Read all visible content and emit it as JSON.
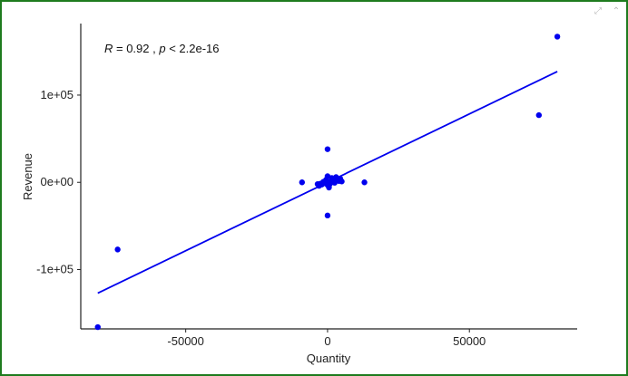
{
  "toolbar": {
    "icons": [
      "expand-icon",
      "collapse-icon"
    ],
    "expand_glyph": "⤢",
    "collapse_glyph": "⌃"
  },
  "chart_data": {
    "type": "scatter",
    "title": "",
    "xlabel": "Quantity",
    "ylabel": "Revenue",
    "xlim": [
      -87000,
      88000
    ],
    "ylim": [
      -168000,
      182000
    ],
    "x_ticks": [
      -50000,
      0,
      50000
    ],
    "x_tick_labels": [
      "-50000",
      "0",
      "50000"
    ],
    "y_ticks": [
      -100000,
      0,
      100000
    ],
    "y_tick_labels": [
      "-1e+05",
      "0e+00",
      "1e+05"
    ],
    "grid": false,
    "legend": "none",
    "annotation": {
      "r_symbol": "R",
      "r_value": " = 0.92 , ",
      "p_symbol": "p",
      "p_value": " < 2.2e-16"
    },
    "colors": {
      "points": "#0000ee",
      "line": "#0000ee",
      "axis": "#222222",
      "frame": "#1e7b1e"
    },
    "regression": {
      "x": [
        -81000,
        81000
      ],
      "y": [
        -127000,
        127000
      ]
    },
    "points": [
      {
        "x": 81000,
        "y": 167000
      },
      {
        "x": 74500,
        "y": 77000
      },
      {
        "x": -74000,
        "y": -77000
      },
      {
        "x": -81000,
        "y": -166000
      },
      {
        "x": 0,
        "y": 38000
      },
      {
        "x": 0,
        "y": -38000
      },
      {
        "x": -9000,
        "y": 0
      },
      {
        "x": 13000,
        "y": 0
      },
      {
        "x": 0,
        "y": 7000
      },
      {
        "x": 1500,
        "y": 5000
      },
      {
        "x": 3000,
        "y": 6000
      },
      {
        "x": 4500,
        "y": 4000
      },
      {
        "x": 2000,
        "y": 2000
      },
      {
        "x": 4000,
        "y": 1500
      },
      {
        "x": 1000,
        "y": 0
      },
      {
        "x": 0,
        "y": 0
      },
      {
        "x": -1000,
        "y": -1000
      },
      {
        "x": -2000,
        "y": -2500
      },
      {
        "x": -3000,
        "y": -4000
      },
      {
        "x": -2500,
        "y": -1500
      },
      {
        "x": -1500,
        "y": 500
      },
      {
        "x": 0,
        "y": -3000
      },
      {
        "x": 500,
        "y": -6000
      },
      {
        "x": 1200,
        "y": 1200
      },
      {
        "x": 2500,
        "y": -500
      },
      {
        "x": -500,
        "y": 3000
      },
      {
        "x": 3500,
        "y": 3000
      },
      {
        "x": -3500,
        "y": -2000
      },
      {
        "x": 800,
        "y": -2000
      },
      {
        "x": 5000,
        "y": 1000
      }
    ]
  }
}
